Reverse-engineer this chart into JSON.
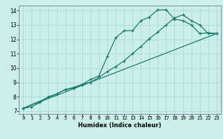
{
  "xlabel": "Humidex (Indice chaleur)",
  "bg_color": "#cceee8",
  "grid_color": "#aadddd",
  "line_color": "#1a7a6a",
  "xlim": [
    -0.5,
    23.5
  ],
  "ylim": [
    6.8,
    14.35
  ],
  "xticks": [
    0,
    1,
    2,
    3,
    4,
    5,
    6,
    7,
    8,
    9,
    10,
    11,
    12,
    13,
    14,
    15,
    16,
    17,
    18,
    19,
    20,
    21,
    22,
    23
  ],
  "yticks": [
    7,
    8,
    9,
    10,
    11,
    12,
    13,
    14
  ],
  "line1_x": [
    0,
    1,
    2,
    3,
    4,
    5,
    6,
    7,
    8,
    9,
    10,
    11,
    12,
    13,
    14,
    15,
    16,
    17,
    18,
    19,
    20,
    21,
    22,
    23
  ],
  "line1_y": [
    7.2,
    7.3,
    7.6,
    8.0,
    8.2,
    8.5,
    8.6,
    8.85,
    9.2,
    9.45,
    10.8,
    12.1,
    12.6,
    12.6,
    13.3,
    13.55,
    14.05,
    14.05,
    13.4,
    13.3,
    13.0,
    12.4,
    12.45,
    12.4
  ],
  "line2_x": [
    0,
    4,
    5,
    6,
    7,
    8,
    9,
    10,
    11,
    12,
    13,
    14,
    15,
    16,
    17,
    18,
    19,
    20,
    21,
    22,
    23
  ],
  "line2_y": [
    7.2,
    8.2,
    8.5,
    8.65,
    8.85,
    9.0,
    9.35,
    9.75,
    10.1,
    10.5,
    11.0,
    11.5,
    12.05,
    12.5,
    13.0,
    13.5,
    13.7,
    13.3,
    13.0,
    12.4,
    12.4
  ],
  "line3_x": [
    0,
    23
  ],
  "line3_y": [
    7.2,
    12.4
  ],
  "xlabel_fontsize": 6.0,
  "tick_fontsize": 5.2,
  "linewidth": 0.9,
  "marker_size": 2.8
}
